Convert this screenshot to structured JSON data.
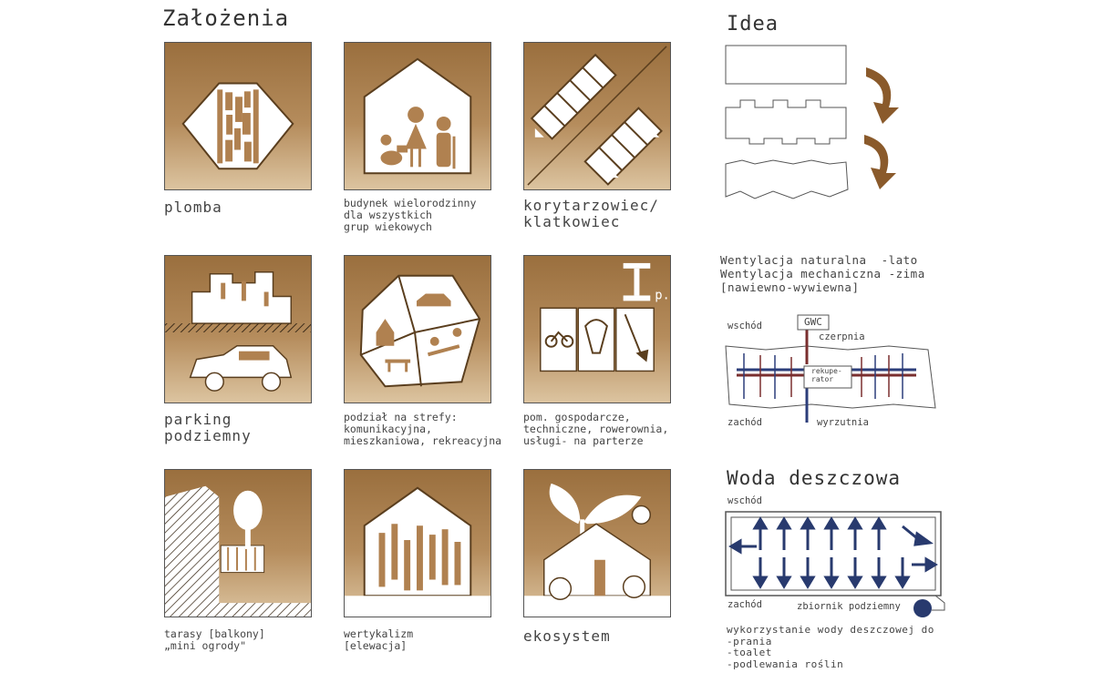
{
  "headings": {
    "zalozenia": "Założenia",
    "idea": "Idea",
    "woda": "Woda deszczowa"
  },
  "tiles": [
    {
      "id": "plomba",
      "lines": [
        "plomba"
      ]
    },
    {
      "id": "budynek",
      "lines": [
        "budynek wielorodzinny",
        "dla wszystkich",
        "grup wiekowych"
      ]
    },
    {
      "id": "korytarzowiec",
      "lines": [
        "korytarzowiec/",
        "klatkowiec"
      ]
    },
    {
      "id": "parking",
      "lines": [
        "parking",
        "podziemny"
      ]
    },
    {
      "id": "strefy",
      "lines": [
        "podział na strefy:",
        "komunikacyjna,",
        "mieszkaniowa, rekreacyjna"
      ]
    },
    {
      "id": "gospodarcze",
      "lines": [
        "pom. gospodarcze,",
        "techniczne, rowerownia,",
        "usługi- na parterze"
      ]
    },
    {
      "id": "tarasy",
      "lines": [
        "tarasy [balkony]",
        "„mini ogrody\""
      ]
    },
    {
      "id": "wertykalizm",
      "lines": [
        "wertykalizm",
        "[elewacja]"
      ]
    },
    {
      "id": "ekosystem",
      "lines": [
        "ekosystem"
      ]
    }
  ],
  "wentylacja": {
    "lines": [
      "Wentylacja naturalna  -lato",
      "Wentylacja mechaniczna -zima",
      "[nawiewno-wywiewna]"
    ],
    "wschod": "wschód",
    "zachod": "zachód",
    "gwc": "GWC",
    "czerpnia": "czerpnia",
    "rekuperator_1": "rekupe-",
    "rekuperator_2": "rator",
    "wyrzutnia": "wyrzutnia"
  },
  "woda_panel": {
    "wschod": "wschód",
    "zachod": "zachód",
    "zbiornik": "zbiornik podziemny",
    "lines": [
      "wykorzystanie wody deszczowej do",
      "-prania",
      "-toalet",
      "-podlewania roślin"
    ]
  },
  "colors": {
    "tile_top": "#9a6f3e",
    "tile_bottom": "#dcc4a0",
    "arrow_brown": "#8a5a2b",
    "vent_blue": "#2c3e7a",
    "vent_red": "#7a2f2f",
    "water_blue": "#283a6e"
  }
}
